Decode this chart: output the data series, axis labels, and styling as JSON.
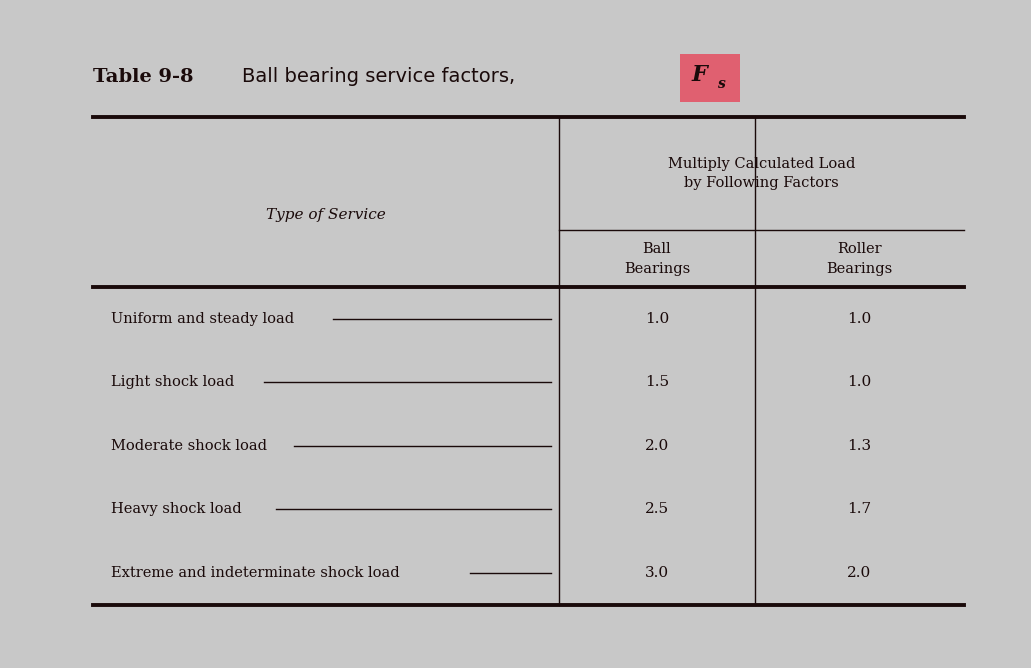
{
  "title_prefix": "Table 9-8",
  "title_main": "Ball bearing service factors,",
  "background_color": "#c8c8c8",
  "header_col1": "Type of Service",
  "header_col2_top": "Multiply Calculated Load\nby Following Factors",
  "header_col2_ball": "Ball\nBearings",
  "header_col2_roller": "Roller\nBearings",
  "rows": [
    [
      "Uniform and steady load",
      "1.0",
      "1.0"
    ],
    [
      "Light shock load",
      "1.5",
      "1.0"
    ],
    [
      "Moderate shock load",
      "2.0",
      "1.3"
    ],
    [
      "Heavy shock load",
      "2.5",
      "1.7"
    ],
    [
      "Extreme and indeterminate shock load",
      "3.0",
      "2.0"
    ]
  ],
  "fs_box_color": "#e06070",
  "fs_text_color": "#1a0a0a",
  "main_text_color": "#1a0a0a",
  "figsize": [
    10.31,
    6.68
  ]
}
